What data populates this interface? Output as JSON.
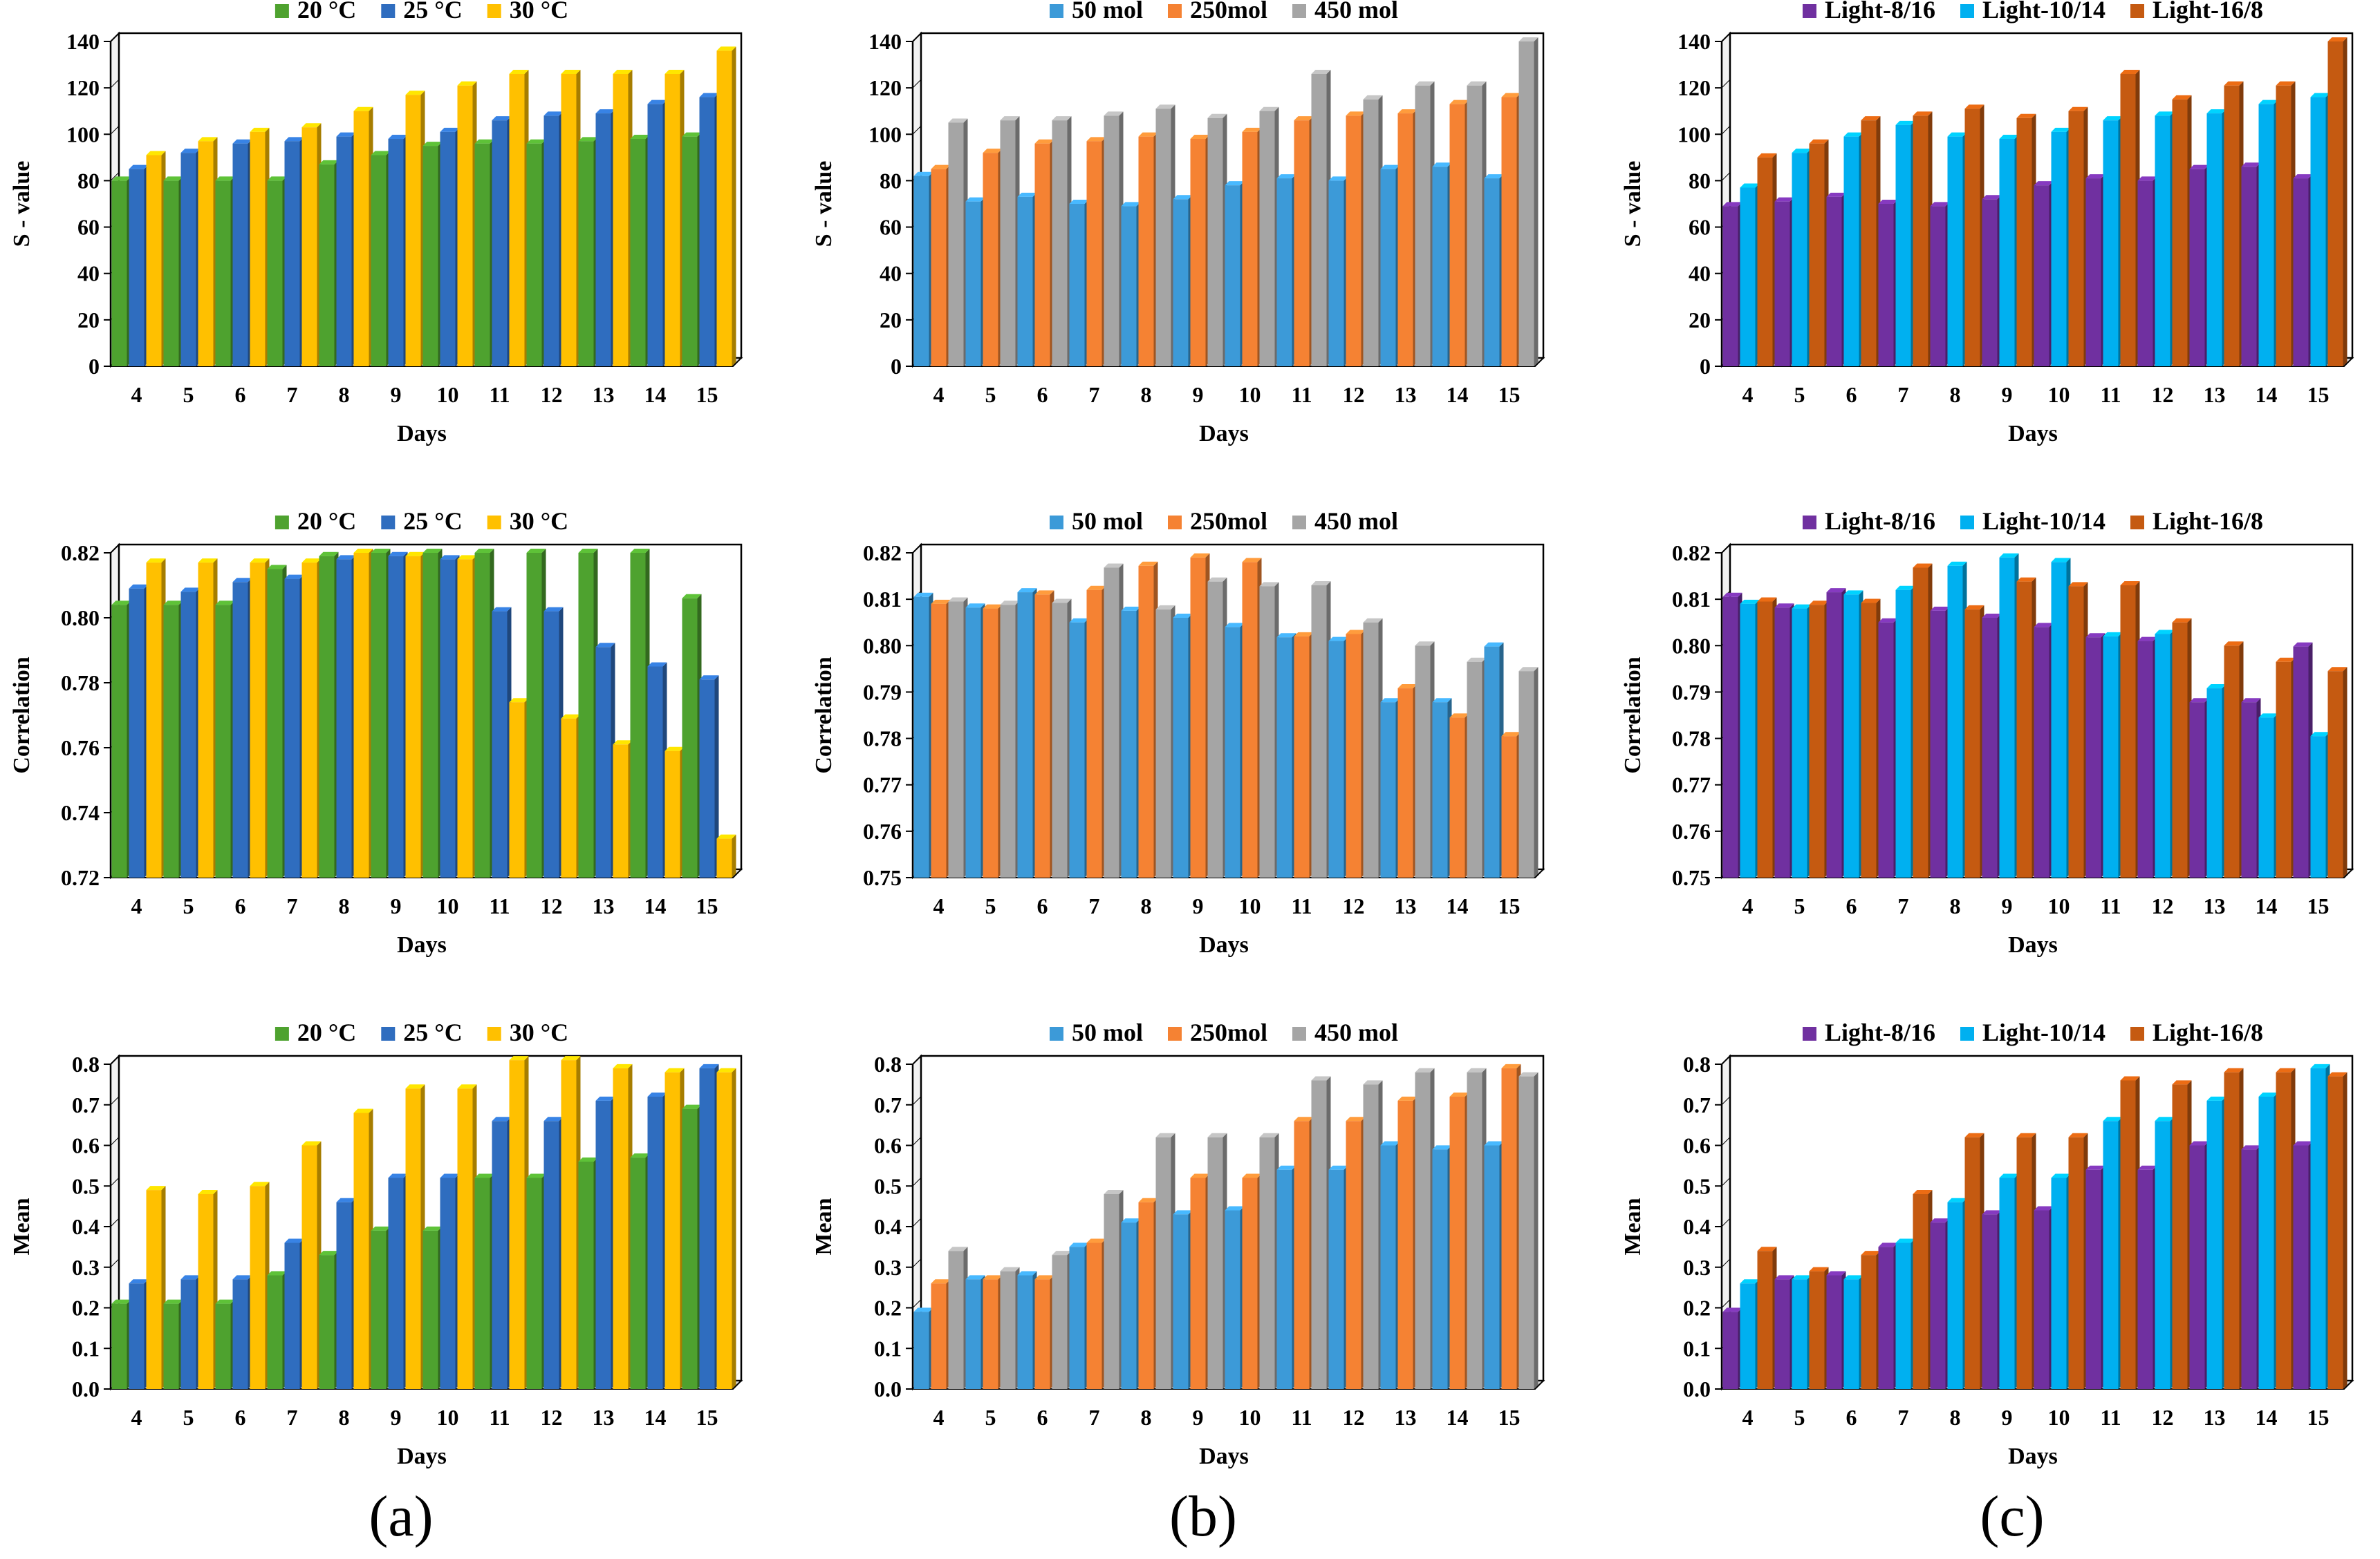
{
  "figure": {
    "panel_labels": [
      "(a)",
      "(b)",
      "(c)"
    ]
  },
  "chart_data": [
    {
      "id": "a-svalue",
      "type": "bar",
      "panel": "(a)",
      "categories": [
        "4",
        "5",
        "6",
        "7",
        "8",
        "9",
        "10",
        "11",
        "12",
        "13",
        "14",
        "15"
      ],
      "xlabel": "Days",
      "ylabel": "S - value",
      "ylim": [
        0,
        140
      ],
      "yticks": [
        0,
        20,
        40,
        60,
        80,
        100,
        120,
        140
      ],
      "decimals": 0,
      "legend": "top",
      "series": [
        {
          "name": "20 °C",
          "color": "#4ea22f",
          "values": [
            80,
            80,
            80,
            80,
            87,
            91,
            95,
            96,
            96,
            97,
            98,
            99
          ]
        },
        {
          "name": "25 °C",
          "color": "#2f6dbf",
          "values": [
            85,
            92,
            96,
            97,
            99,
            98,
            101,
            106,
            108,
            109,
            113,
            116
          ]
        },
        {
          "name": "30 °C",
          "color": "#ffc000",
          "values": [
            91,
            97,
            101,
            103,
            110,
            117,
            121,
            126,
            126,
            126,
            126,
            136
          ]
        }
      ]
    },
    {
      "id": "b-svalue",
      "type": "bar",
      "panel": "(b)",
      "categories": [
        "4",
        "5",
        "6",
        "7",
        "8",
        "9",
        "10",
        "11",
        "12",
        "13",
        "14",
        "15"
      ],
      "xlabel": "Days",
      "ylabel": "S - value",
      "ylim": [
        0,
        140
      ],
      "yticks": [
        0,
        20,
        40,
        60,
        80,
        100,
        120,
        140
      ],
      "decimals": 0,
      "legend": "top",
      "series": [
        {
          "name": "50 mol",
          "color": "#3c9ad8",
          "values": [
            82,
            71,
            73,
            70,
            69,
            72,
            78,
            81,
            80,
            85,
            86,
            81
          ]
        },
        {
          "name": "250mol",
          "color": "#f58233",
          "values": [
            85,
            92,
            96,
            97,
            99,
            98,
            101,
            106,
            108,
            109,
            113,
            116
          ]
        },
        {
          "name": "450 mol",
          "color": "#a5a5a5",
          "values": [
            105,
            106,
            106,
            108,
            111,
            107,
            110,
            126,
            115,
            121,
            121,
            140
          ]
        }
      ]
    },
    {
      "id": "c-svalue",
      "type": "bar",
      "panel": "(c)",
      "categories": [
        "4",
        "5",
        "6",
        "7",
        "8",
        "9",
        "10",
        "11",
        "12",
        "13",
        "14",
        "15"
      ],
      "xlabel": "Days",
      "ylabel": "S - value",
      "ylim": [
        0,
        140
      ],
      "yticks": [
        0,
        20,
        40,
        60,
        80,
        100,
        120,
        140
      ],
      "decimals": 0,
      "legend": "top",
      "series": [
        {
          "name": "Light-8/16",
          "color": "#7030a0",
          "values": [
            69,
            71,
            73,
            70,
            69,
            72,
            78,
            81,
            80,
            85,
            86,
            81
          ]
        },
        {
          "name": "Light-10/14",
          "color": "#00b0f0",
          "values": [
            77,
            92,
            99,
            104,
            99,
            98,
            101,
            106,
            108,
            109,
            113,
            116
          ]
        },
        {
          "name": "Light-16/8",
          "color": "#c55a11",
          "values": [
            90,
            96,
            106,
            108,
            111,
            107,
            110,
            126,
            115,
            121,
            121,
            140
          ]
        }
      ]
    },
    {
      "id": "a-correlation",
      "type": "bar",
      "panel": "(a)",
      "categories": [
        "4",
        "5",
        "6",
        "7",
        "8",
        "9",
        "10",
        "11",
        "12",
        "13",
        "14",
        "15"
      ],
      "xlabel": "Days",
      "ylabel": "Correlation",
      "ylim": [
        0.72,
        0.82
      ],
      "yticks": [
        0.72,
        0.74,
        0.76,
        0.78,
        0.8,
        0.82
      ],
      "decimals": 2,
      "legend": "top",
      "series": [
        {
          "name": "20 °C",
          "color": "#4ea22f",
          "values": [
            0.804,
            0.804,
            0.804,
            0.815,
            0.819,
            0.82,
            0.82,
            0.82,
            0.82,
            0.82,
            0.82,
            0.806
          ]
        },
        {
          "name": "25 °C",
          "color": "#2f6dbf",
          "values": [
            0.809,
            0.808,
            0.811,
            0.812,
            0.818,
            0.819,
            0.818,
            0.802,
            0.802,
            0.791,
            0.785,
            0.781
          ]
        },
        {
          "name": "30 °C",
          "color": "#ffc000",
          "values": [
            0.817,
            0.817,
            0.817,
            0.817,
            0.82,
            0.819,
            0.818,
            0.774,
            0.769,
            0.761,
            0.759,
            0.732
          ]
        }
      ]
    },
    {
      "id": "b-correlation",
      "type": "bar",
      "panel": "(b)",
      "categories": [
        "4",
        "5",
        "6",
        "7",
        "8",
        "9",
        "10",
        "11",
        "12",
        "13",
        "14",
        "15"
      ],
      "xlabel": "Days",
      "ylabel": "Correlation",
      "ylim": [
        0.75,
        0.82
      ],
      "yticks": [
        0.75,
        0.76,
        0.77,
        0.78,
        0.79,
        0.8,
        0.81,
        0.82
      ],
      "decimals": 2,
      "legend": "top",
      "series": [
        {
          "name": "50 mol",
          "color": "#3c9ad8",
          "values": [
            0.8105,
            0.8082,
            0.8115,
            0.805,
            0.8075,
            0.806,
            0.804,
            0.8018,
            0.801,
            0.7878,
            0.7878,
            0.7998
          ]
        },
        {
          "name": "250mol",
          "color": "#f58233",
          "values": [
            0.809,
            0.808,
            0.811,
            0.812,
            0.8172,
            0.819,
            0.818,
            0.802,
            0.8025,
            0.7908,
            0.7845,
            0.7805
          ]
        },
        {
          "name": "450 mol",
          "color": "#a5a5a5",
          "values": [
            0.8095,
            0.8088,
            0.8092,
            0.8168,
            0.8078,
            0.8138,
            0.8128,
            0.813,
            0.805,
            0.8,
            0.7965,
            0.7945
          ]
        }
      ]
    },
    {
      "id": "c-correlation",
      "type": "bar",
      "panel": "(c)",
      "categories": [
        "4",
        "5",
        "6",
        "7",
        "8",
        "9",
        "10",
        "11",
        "12",
        "13",
        "14",
        "15"
      ],
      "xlabel": "Days",
      "ylabel": "Correlation",
      "ylim": [
        0.75,
        0.82
      ],
      "yticks": [
        0.75,
        0.76,
        0.77,
        0.78,
        0.79,
        0.8,
        0.81,
        0.82
      ],
      "decimals": 2,
      "legend": "top",
      "series": [
        {
          "name": "Light-8/16",
          "color": "#7030a0",
          "values": [
            0.8105,
            0.8082,
            0.8115,
            0.805,
            0.8075,
            0.806,
            0.804,
            0.8018,
            0.801,
            0.7878,
            0.7878,
            0.7998
          ]
        },
        {
          "name": "Light-10/14",
          "color": "#00b0f0",
          "values": [
            0.809,
            0.808,
            0.811,
            0.812,
            0.8172,
            0.819,
            0.818,
            0.802,
            0.8025,
            0.7908,
            0.7845,
            0.7805
          ]
        },
        {
          "name": "Light-16/8",
          "color": "#c55a11",
          "values": [
            0.8095,
            0.8088,
            0.8092,
            0.8168,
            0.8078,
            0.8138,
            0.8128,
            0.813,
            0.805,
            0.8,
            0.7965,
            0.7945
          ]
        }
      ]
    },
    {
      "id": "a-mean",
      "type": "bar",
      "panel": "(a)",
      "categories": [
        "4",
        "5",
        "6",
        "7",
        "8",
        "9",
        "10",
        "11",
        "12",
        "13",
        "14",
        "15"
      ],
      "xlabel": "Days",
      "ylabel": "Mean",
      "ylim": [
        0,
        0.8
      ],
      "yticks": [
        0,
        0.1,
        0.2,
        0.3,
        0.4,
        0.5,
        0.6,
        0.7,
        0.8
      ],
      "decimals": 1,
      "legend": "top",
      "series": [
        {
          "name": "20 °C",
          "color": "#4ea22f",
          "values": [
            0.21,
            0.21,
            0.21,
            0.28,
            0.33,
            0.39,
            0.39,
            0.52,
            0.52,
            0.56,
            0.57,
            0.69
          ]
        },
        {
          "name": "25 °C",
          "color": "#2f6dbf",
          "values": [
            0.26,
            0.27,
            0.27,
            0.36,
            0.46,
            0.52,
            0.52,
            0.66,
            0.66,
            0.71,
            0.72,
            0.79
          ]
        },
        {
          "name": "30 °C",
          "color": "#ffc000",
          "values": [
            0.49,
            0.48,
            0.5,
            0.6,
            0.68,
            0.74,
            0.74,
            0.81,
            0.81,
            0.79,
            0.78,
            0.78
          ]
        }
      ]
    },
    {
      "id": "b-mean",
      "type": "bar",
      "panel": "(b)",
      "categories": [
        "4",
        "5",
        "6",
        "7",
        "8",
        "9",
        "10",
        "11",
        "12",
        "13",
        "14",
        "15"
      ],
      "xlabel": "Days",
      "ylabel": "Mean",
      "ylim": [
        0,
        0.8
      ],
      "yticks": [
        0,
        0.1,
        0.2,
        0.3,
        0.4,
        0.5,
        0.6,
        0.7,
        0.8
      ],
      "decimals": 1,
      "legend": "top",
      "series": [
        {
          "name": "50 mol",
          "color": "#3c9ad8",
          "values": [
            0.19,
            0.27,
            0.28,
            0.35,
            0.41,
            0.43,
            0.44,
            0.54,
            0.54,
            0.6,
            0.59,
            0.6
          ]
        },
        {
          "name": "250mol",
          "color": "#f58233",
          "values": [
            0.26,
            0.27,
            0.27,
            0.36,
            0.46,
            0.52,
            0.52,
            0.66,
            0.66,
            0.71,
            0.72,
            0.79
          ]
        },
        {
          "name": "450 mol",
          "color": "#a5a5a5",
          "values": [
            0.34,
            0.29,
            0.33,
            0.48,
            0.62,
            0.62,
            0.62,
            0.76,
            0.75,
            0.78,
            0.78,
            0.77
          ]
        }
      ]
    },
    {
      "id": "c-mean",
      "type": "bar",
      "panel": "(c)",
      "categories": [
        "4",
        "5",
        "6",
        "7",
        "8",
        "9",
        "10",
        "11",
        "12",
        "13",
        "14",
        "15"
      ],
      "xlabel": "Days",
      "ylabel": "Mean",
      "ylim": [
        0,
        0.8
      ],
      "yticks": [
        0,
        0.1,
        0.2,
        0.3,
        0.4,
        0.5,
        0.6,
        0.7,
        0.8
      ],
      "decimals": 1,
      "legend": "top",
      "series": [
        {
          "name": "Light-8/16",
          "color": "#7030a0",
          "values": [
            0.19,
            0.27,
            0.28,
            0.35,
            0.41,
            0.43,
            0.44,
            0.54,
            0.54,
            0.6,
            0.59,
            0.6
          ]
        },
        {
          "name": "Light-10/14",
          "color": "#00b0f0",
          "values": [
            0.26,
            0.27,
            0.27,
            0.36,
            0.46,
            0.52,
            0.52,
            0.66,
            0.66,
            0.71,
            0.72,
            0.79
          ]
        },
        {
          "name": "Light-16/8",
          "color": "#c55a11",
          "values": [
            0.34,
            0.29,
            0.33,
            0.48,
            0.62,
            0.62,
            0.62,
            0.76,
            0.75,
            0.78,
            0.78,
            0.77
          ]
        }
      ]
    }
  ]
}
